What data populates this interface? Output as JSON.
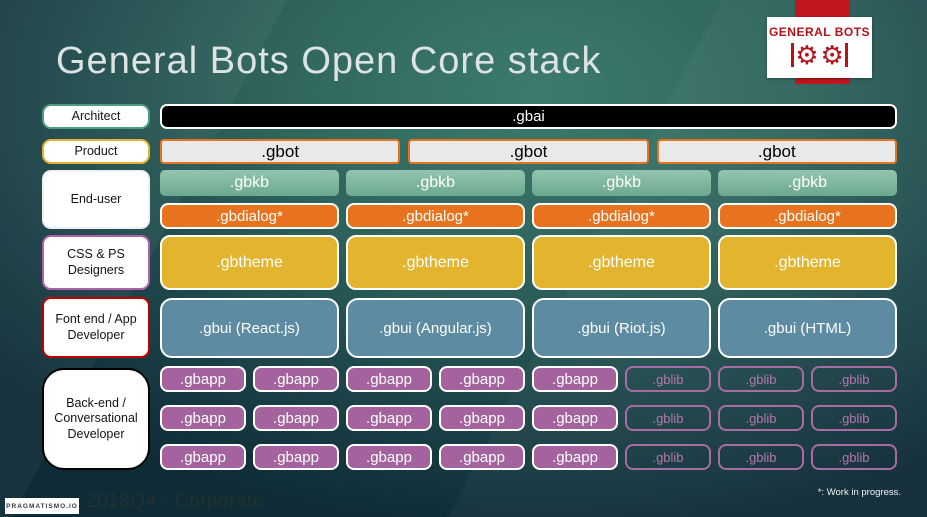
{
  "slide": {
    "title": "General Bots Open Core stack",
    "footer_badge": "PRAGMATISMO.IO",
    "footer_left": "2018Q4 - Corporate",
    "footer_right": "*: Work in progress."
  },
  "logo": {
    "name": "GENERAL BOTS",
    "brand_red": "#b5121b"
  },
  "row_labels": [
    {
      "label": "Architect",
      "border_color": "#4a9e7f"
    },
    {
      "label": "Product",
      "border_color": "#e2b32e"
    },
    {
      "label": "End-user",
      "border_color": "#f0f0f0"
    },
    {
      "label": "CSS & PS Designers",
      "border_color": "#b05fa8"
    },
    {
      "label": "Font end / App Developer",
      "border_color": "#c00000"
    },
    {
      "label": "Back-end / Conversational Developer",
      "border_color": "#000000"
    }
  ],
  "stack": {
    "gbai": ".gbai",
    "gbot": [
      ".gbot",
      ".gbot",
      ".gbot"
    ],
    "gbkb": [
      ".gbkb",
      ".gbkb",
      ".gbkb",
      ".gbkb"
    ],
    "gbdialog": [
      ".gbdialog*",
      ".gbdialog*",
      ".gbdialog*",
      ".gbdialog*"
    ],
    "gbtheme": [
      ".gbtheme",
      ".gbtheme",
      ".gbtheme",
      ".gbtheme"
    ],
    "gbui": [
      ".gbui (React.js)",
      ".gbui (Angular.js)",
      ".gbui (Riot.js)",
      ".gbui (HTML)"
    ],
    "apps": [
      {
        "gbapp": [
          ".gbapp",
          ".gbapp",
          ".gbapp",
          ".gbapp",
          ".gbapp"
        ],
        "gblib": [
          ".gblib",
          ".gblib",
          ".gblib"
        ]
      },
      {
        "gbapp": [
          ".gbapp",
          ".gbapp",
          ".gbapp",
          ".gbapp",
          ".gbapp"
        ],
        "gblib": [
          ".gblib",
          ".gblib",
          ".gblib"
        ]
      },
      {
        "gbapp": [
          ".gbapp",
          ".gbapp",
          ".gbapp",
          ".gbapp",
          ".gbapp"
        ],
        "gblib": [
          ".gblib",
          ".gblib",
          ".gblib"
        ]
      }
    ]
  },
  "colors": {
    "background_dark": "#0f2b36",
    "background_light": "#3d7a6f",
    "gbai_bg": "#000000",
    "gbot_bg": "#e9e9e9",
    "gbot_border": "#e8731f",
    "gbkb_bg": "#7ab79d",
    "gbdialog_bg": "#e8731f",
    "gbtheme_bg": "#e3b42e",
    "gbui_bg": "#5d8ba2",
    "gbapp_bg": "#a4639e",
    "gblib_border": "#a96ba3"
  }
}
